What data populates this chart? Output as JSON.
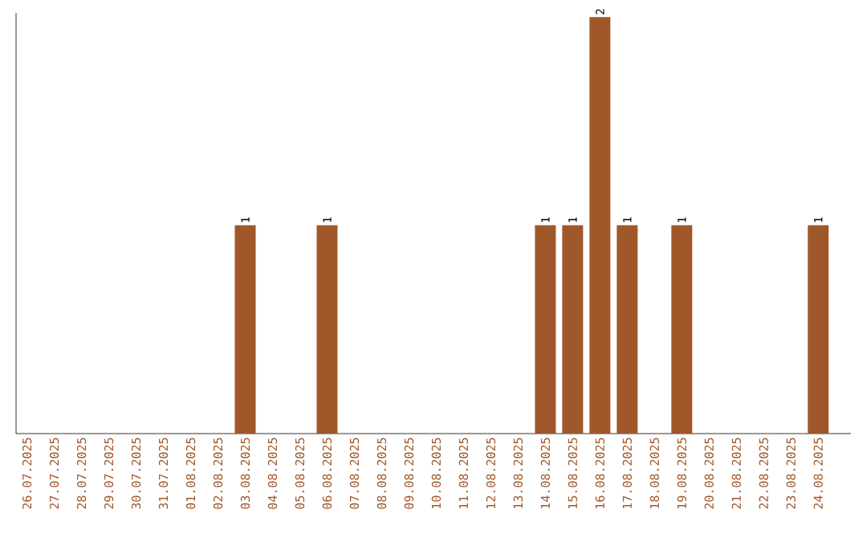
{
  "chart_data": {
    "type": "bar",
    "categories": [
      "26.07.2025",
      "27.07.2025",
      "28.07.2025",
      "29.07.2025",
      "30.07.2025",
      "31.07.2025",
      "01.08.2025",
      "02.08.2025",
      "03.08.2025",
      "04.08.2025",
      "05.08.2025",
      "06.08.2025",
      "07.08.2025",
      "08.08.2025",
      "09.08.2025",
      "10.08.2025",
      "11.08.2025",
      "12.08.2025",
      "13.08.2025",
      "14.08.2025",
      "15.08.2025",
      "16.08.2025",
      "17.08.2025",
      "18.08.2025",
      "19.08.2025",
      "20.08.2025",
      "21.08.2025",
      "22.08.2025",
      "23.08.2025",
      "24.08.2025"
    ],
    "values": [
      0,
      0,
      0,
      0,
      0,
      0,
      0,
      0,
      1,
      0,
      0,
      1,
      0,
      0,
      0,
      0,
      0,
      0,
      0,
      1,
      1,
      2,
      1,
      0,
      1,
      0,
      0,
      0,
      0,
      1
    ],
    "value_labels": [
      null,
      null,
      null,
      null,
      null,
      null,
      null,
      null,
      "1",
      null,
      null,
      "1",
      null,
      null,
      null,
      null,
      null,
      null,
      null,
      "1",
      "1",
      "2",
      "1",
      null,
      "1",
      null,
      null,
      null,
      null,
      "1"
    ],
    "color": "#a0582a"
  }
}
